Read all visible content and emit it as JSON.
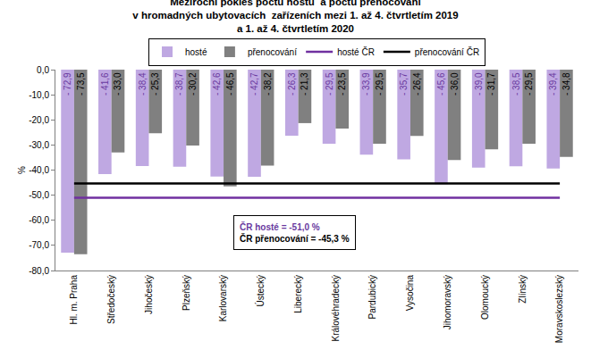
{
  "chart_data": {
    "type": "bar",
    "title": "Meziroční pokles počtu hostů  a počtu přenocování\nv hromadných ubytovacích  zařízeních mezi 1. až 4. čtvrtletím 2019\na 1. až 4. čtvrtletím 2020",
    "y_label": "%",
    "categories": [
      "Hl. m. Praha",
      "Středočeský",
      "Jihočeský",
      "Plzeňský",
      "Karlovarský",
      "Ústecký",
      "Liberecký",
      "Královéhradecký",
      "Pardubický",
      "Vysočina",
      "Jihomoravský",
      "Olomoucký",
      "Zlínský",
      "Moravskoslezský"
    ],
    "series": [
      {
        "name": "hosté",
        "type": "bar",
        "color": "#bfa8e2",
        "values": [
          -72.9,
          -41.6,
          -38.4,
          -38.7,
          -42.6,
          -42.7,
          -26.3,
          -29.5,
          -33.9,
          -35.7,
          -45.6,
          -39.0,
          -38.5,
          -39.4
        ],
        "value_labels": [
          "- 72,9",
          "- 41,6",
          "- 38,4",
          "- 38,7",
          "- 42,6",
          "- 42,7",
          "- 26,3",
          "- 29,5",
          "- 33,9",
          "- 35,7",
          "- 45,6",
          "- 39,0",
          "- 38,5",
          "- 39,4"
        ]
      },
      {
        "name": "přenocování",
        "type": "bar",
        "color": "#808080",
        "values": [
          -73.5,
          -33.0,
          -25.3,
          -30.2,
          -46.5,
          -38.2,
          -21.3,
          -23.5,
          -29.5,
          -26.4,
          -36.0,
          -31.7,
          -29.5,
          -34.8
        ],
        "value_labels": [
          "- 73,5",
          "- 33,0",
          "- 25,3",
          "- 30,2",
          "- 46,5",
          "- 38,2",
          "- 21,3",
          "- 23,5",
          "- 29,5",
          "- 26,4",
          "- 36,0",
          "- 31,7",
          "- 29,5",
          "- 34,8"
        ]
      },
      {
        "name": "hosté ČR",
        "type": "line",
        "color": "#7030a0",
        "values": [
          -51.0,
          -51.0,
          -51.0,
          -51.0,
          -51.0,
          -51.0,
          -51.0,
          -51.0,
          -51.0,
          -51.0,
          -51.0,
          -51.0,
          -51.0,
          -51.0
        ]
      },
      {
        "name": "přenocování ČR",
        "type": "line",
        "color": "#000000",
        "values": [
          -45.3,
          -45.3,
          -45.3,
          -45.3,
          -45.3,
          -45.3,
          -45.3,
          -45.3,
          -45.3,
          -45.3,
          -45.3,
          -45.3,
          -45.3,
          -45.3
        ]
      }
    ],
    "annotations": [
      "ČR hosté = -51,0 %",
      "ČR přenocování = -45,3 %"
    ],
    "ylim": [
      -80,
      0
    ],
    "yticks": [
      {
        "value": 0,
        "label": "0,0"
      },
      {
        "value": -10,
        "label": "-10,0"
      },
      {
        "value": -20,
        "label": "-20,0"
      },
      {
        "value": -30,
        "label": "-30,0"
      },
      {
        "value": -40,
        "label": "-40,0"
      },
      {
        "value": -50,
        "label": "-50,0"
      },
      {
        "value": -60,
        "label": "-60,0"
      },
      {
        "value": -70,
        "label": "-70,0"
      },
      {
        "value": -80,
        "label": "-80,0"
      }
    ],
    "grid": false,
    "legend": "top",
    "data_labels": true
  }
}
